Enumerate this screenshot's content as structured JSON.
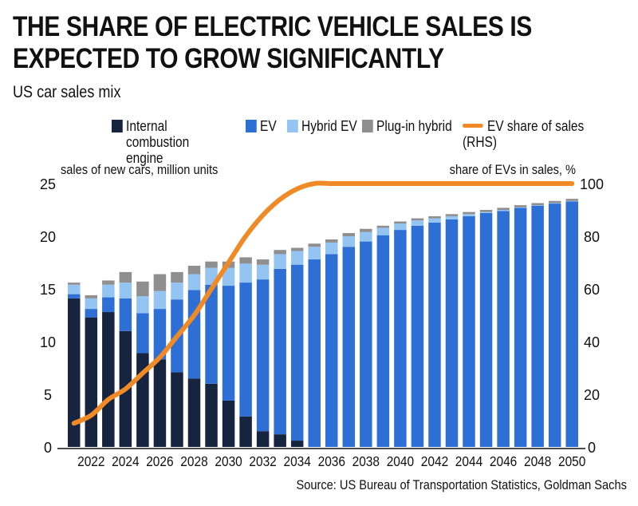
{
  "title": "THE SHARE OF ELECTRIC VEHICLE SALES IS EXPECTED TO GROW SIGNIFICANTLY",
  "subtitle": "US car sales mix",
  "source": "Source: US Bureau of Transportation Statistics, Goldman Sachs",
  "legend": [
    {
      "label": "Internal combustion engine",
      "color": "#16243f",
      "kind": "box"
    },
    {
      "label": "EV",
      "color": "#2e6fd6",
      "kind": "box"
    },
    {
      "label": "Hybrid EV",
      "color": "#93c4f2",
      "kind": "box"
    },
    {
      "label": "Plug-in hybrid",
      "color": "#8f8f8f",
      "kind": "box"
    },
    {
      "label": "EV share of sales (RHS)",
      "color": "#f08a26",
      "kind": "line"
    }
  ],
  "chart_data": {
    "type": "bar",
    "stacked": true,
    "ylabel_left": "sales of new cars, million units",
    "ylabel_right": "share of EVs in sales, %",
    "ylim_left": [
      0,
      25
    ],
    "ylim_right": [
      0,
      100
    ],
    "yticks_left": [
      "0",
      "5",
      "10",
      "15",
      "20",
      "25"
    ],
    "yticks_right": [
      "0",
      "20",
      "40",
      "60",
      "80",
      "100"
    ],
    "xtick_labels": [
      "2022",
      "2024",
      "2026",
      "2028",
      "2030",
      "2032",
      "2034",
      "2036",
      "2038",
      "2040",
      "2042",
      "2044",
      "2046",
      "2048",
      "2050"
    ],
    "categories": [
      2021,
      2022,
      2023,
      2024,
      2025,
      2026,
      2027,
      2028,
      2029,
      2030,
      2031,
      2032,
      2033,
      2034,
      2035,
      2036,
      2037,
      2038,
      2039,
      2040,
      2041,
      2042,
      2043,
      2044,
      2045,
      2046,
      2047,
      2048,
      2049,
      2050
    ],
    "colors": {
      "ice": "#16243f",
      "ev": "#2e6fd6",
      "hybrid": "#93c4f2",
      "plugin": "#8f8f8f",
      "share": "#f08a26"
    },
    "series": [
      {
        "name": "Internal combustion engine",
        "key": "ice",
        "values": [
          14.1,
          12.3,
          12.8,
          11.0,
          8.9,
          8.3,
          7.1,
          6.5,
          6.0,
          4.4,
          2.9,
          1.5,
          1.2,
          0.6,
          0,
          0,
          0,
          0,
          0,
          0,
          0,
          0,
          0,
          0,
          0,
          0,
          0,
          0,
          0,
          0
        ]
      },
      {
        "name": "EV",
        "key": "ev",
        "values": [
          0.4,
          0.8,
          1.4,
          3.1,
          3.8,
          4.8,
          6.9,
          8.4,
          9.4,
          10.9,
          12.7,
          14.4,
          15.7,
          16.7,
          17.8,
          18.3,
          19.0,
          19.5,
          20.1,
          20.6,
          21.0,
          21.3,
          21.6,
          21.9,
          22.2,
          22.4,
          22.7,
          22.9,
          23.1,
          23.3
        ]
      },
      {
        "name": "Hybrid EV",
        "key": "hybrid",
        "values": [
          0.9,
          1.0,
          1.2,
          1.5,
          1.6,
          1.7,
          1.6,
          1.5,
          1.6,
          1.7,
          1.8,
          1.4,
          1.4,
          1.3,
          1.2,
          1.1,
          1.0,
          0.9,
          0.7,
          0.6,
          0.5,
          0.4,
          0.3,
          0.2,
          0.1,
          0.1,
          0.05,
          0.05,
          0.05,
          0.05
        ]
      },
      {
        "name": "Plug-in hybrid",
        "key": "plugin",
        "values": [
          0.2,
          0.3,
          0.4,
          1.0,
          1.4,
          1.6,
          1.0,
          0.8,
          0.6,
          0.6,
          0.6,
          0.5,
          0.4,
          0.3,
          0.3,
          0.3,
          0.3,
          0.3,
          0.2,
          0.2,
          0.2,
          0.2,
          0.2,
          0.2,
          0.2,
          0.2,
          0.2,
          0.2,
          0.2,
          0.2
        ]
      }
    ],
    "line": {
      "name": "EV share of sales (RHS)",
      "key": "share",
      "axis": "right",
      "values": [
        9,
        12,
        18,
        22,
        28,
        34,
        42,
        50,
        60,
        70,
        80,
        88,
        94,
        98,
        100,
        100,
        100,
        100,
        100,
        100,
        100,
        100,
        100,
        100,
        100,
        100,
        100,
        100,
        100,
        100
      ]
    }
  }
}
